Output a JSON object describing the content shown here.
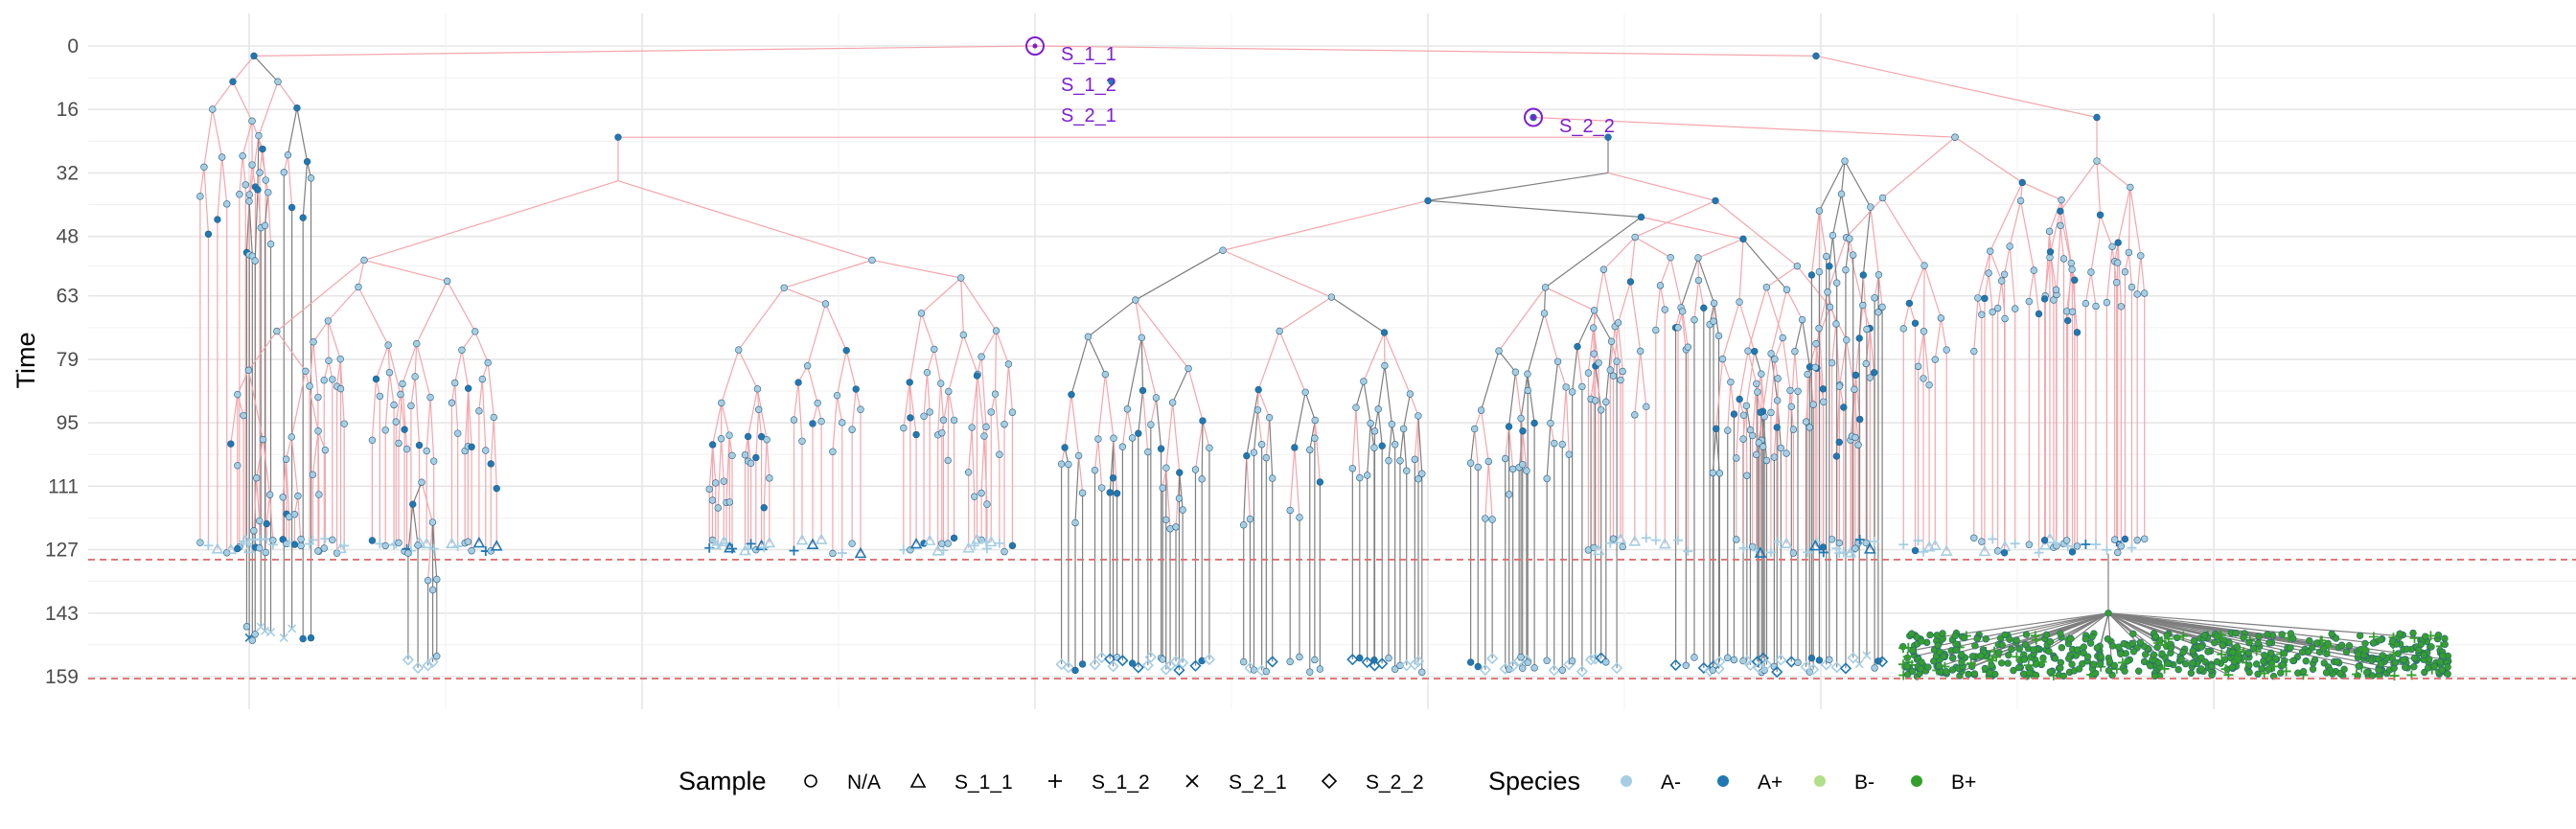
{
  "chart_data": {
    "type": "scatter",
    "subtype": "phylogenetic-tree",
    "title": "",
    "xlabel": "",
    "ylabel": "Time",
    "y_ticks": [
      0,
      16,
      32,
      48,
      63,
      79,
      95,
      111,
      127,
      143,
      159
    ],
    "ylim": [
      0,
      159
    ],
    "y_reversed": true,
    "grid": true,
    "x_axis_ticks_shown": false,
    "reference_lines": [
      {
        "y": 129.5,
        "style": "dashed",
        "color": "#e07070"
      },
      {
        "y": 159.5,
        "style": "dashed",
        "color": "#e07070"
      }
    ],
    "edge_colors": {
      "default": "#7f7f7f",
      "highlight": "#f4a6ac"
    },
    "sample_annotations": [
      {
        "label": "S_1_1",
        "time": 0
      },
      {
        "label": "S_1_2",
        "time": 0
      },
      {
        "label": "S_2_1",
        "time": 0
      },
      {
        "label": "S_2_2",
        "time": 18
      }
    ],
    "annotation_color": "#7b1fd4",
    "legend": {
      "position": "bottom",
      "sample": {
        "title": "Sample",
        "entries": [
          {
            "label": "N/A",
            "shape": "circle"
          },
          {
            "label": "S_1_1",
            "shape": "triangle"
          },
          {
            "label": "S_1_2",
            "shape": "plus"
          },
          {
            "label": "S_2_1",
            "shape": "cross"
          },
          {
            "label": "S_2_2",
            "shape": "diamond"
          }
        ]
      },
      "species": {
        "title": "Species",
        "entries": [
          {
            "label": "A-",
            "color": "#a6cee3"
          },
          {
            "label": "A+",
            "color": "#1f78b4"
          },
          {
            "label": "B-",
            "color": "#b2df8a"
          },
          {
            "label": "B+",
            "color": "#33a02c"
          }
        ]
      }
    }
  }
}
